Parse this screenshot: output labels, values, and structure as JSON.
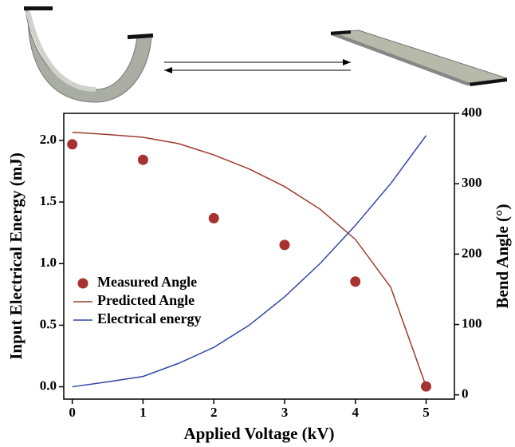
{
  "chart_data": {
    "type": "line",
    "xlabel": "Applied Voltage (kV)",
    "ylabel": "Input Electrical Energy (mJ)",
    "y2label": "Bend Angle (°)",
    "x": [
      0,
      0.5,
      1,
      1.5,
      2,
      2.5,
      3,
      3.5,
      4,
      4.5,
      5
    ],
    "xlim": [
      -0.12,
      5.4
    ],
    "xticks": [
      0,
      1,
      2,
      3,
      4,
      5
    ],
    "ylim": [
      -0.1,
      2.22
    ],
    "yticks": [
      {
        "value": 0,
        "label": "0.0"
      },
      {
        "value": 0.5,
        "label": "0.5"
      },
      {
        "value": 1,
        "label": "1.0"
      },
      {
        "value": 1.5,
        "label": "1.5"
      },
      {
        "value": 2,
        "label": "2.0"
      }
    ],
    "y2lim": [
      -6,
      400
    ],
    "y2ticks": [
      0,
      100,
      200,
      300,
      400
    ],
    "legend": "lower-left",
    "series": [
      {
        "name": "Measured Angle",
        "kind": "scatter",
        "axis": "y2",
        "color": "#a83232",
        "values": [
          356,
          null,
          334,
          null,
          251,
          null,
          213,
          null,
          161,
          null,
          12
        ]
      },
      {
        "name": "Predicted Angle",
        "kind": "line",
        "axis": "y2",
        "color": "#9b3a2c",
        "values": [
          373,
          370,
          366,
          357,
          341,
          321,
          296,
          264,
          221,
          153,
          12
        ]
      },
      {
        "name": "Electrical energy",
        "kind": "line",
        "axis": "y",
        "color": "#3346a6",
        "values": [
          0,
          0.04,
          0.084,
          0.19,
          0.32,
          0.5,
          0.73,
          1.0,
          1.31,
          1.65,
          2.04
        ]
      }
    ]
  }
}
